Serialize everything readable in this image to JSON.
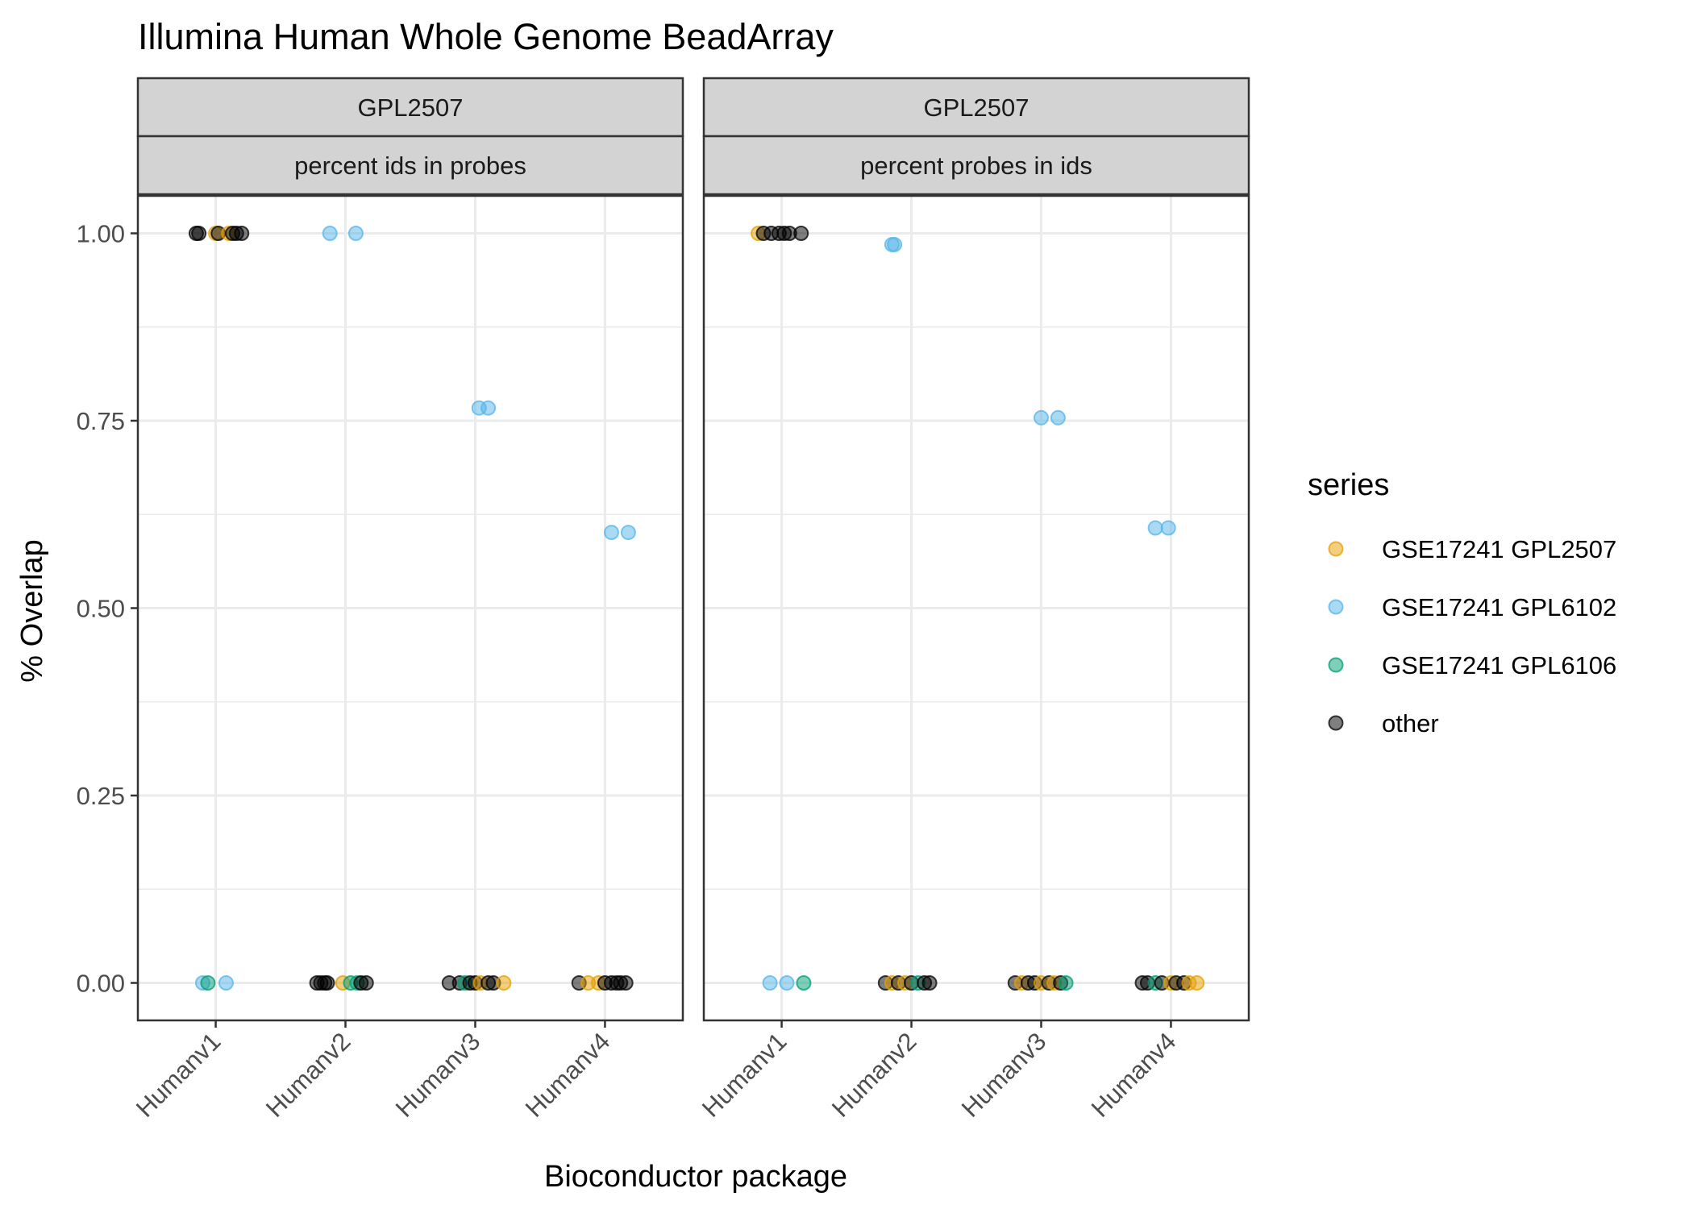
{
  "chart_data": {
    "type": "scatter",
    "title": "Illumina Human Whole Genome BeadArray",
    "xlabel": "Bioconductor package",
    "ylabel": "% Overlap",
    "ylim": [
      -0.05,
      1.05
    ],
    "yticks": [
      "0.00",
      "0.25",
      "0.50",
      "0.75",
      "1.00"
    ],
    "ytick_values": [
      0,
      0.25,
      0.5,
      0.75,
      1.0
    ],
    "categories": [
      "Humanv1",
      "Humanv2",
      "Humanv3",
      "Humanv4"
    ],
    "grid": true,
    "legend": {
      "title": "series",
      "placement": "right",
      "entries": [
        {
          "name": "GSE17241 GPL2507",
          "color": "#E69F00"
        },
        {
          "name": "GSE17241 GPL6102",
          "color": "#56B4E9"
        },
        {
          "name": "GSE17241 GPL6106",
          "color": "#009E73"
        },
        {
          "name": "other",
          "color": "#000000"
        }
      ]
    },
    "panels": [
      {
        "strip_top": "GPL2507",
        "strip_bottom": "percent ids in probes",
        "points": [
          {
            "x": "Humanv1",
            "jitter": -0.15,
            "y": 1.0,
            "series": "other"
          },
          {
            "x": "Humanv1",
            "jitter": -0.13,
            "y": 1.0,
            "series": "other"
          },
          {
            "x": "Humanv1",
            "jitter": 0.0,
            "y": 1.0,
            "series": "GSE17241 GPL2507"
          },
          {
            "x": "Humanv1",
            "jitter": 0.02,
            "y": 1.0,
            "series": "other"
          },
          {
            "x": "Humanv1",
            "jitter": 0.1,
            "y": 1.0,
            "series": "GSE17241 GPL2507"
          },
          {
            "x": "Humanv1",
            "jitter": 0.13,
            "y": 1.0,
            "series": "other"
          },
          {
            "x": "Humanv1",
            "jitter": 0.16,
            "y": 1.0,
            "series": "other"
          },
          {
            "x": "Humanv1",
            "jitter": 0.2,
            "y": 1.0,
            "series": "other"
          },
          {
            "x": "Humanv1",
            "jitter": -0.1,
            "y": 0.0,
            "series": "GSE17241 GPL6102"
          },
          {
            "x": "Humanv1",
            "jitter": -0.06,
            "y": 0.0,
            "series": "GSE17241 GPL6106"
          },
          {
            "x": "Humanv1",
            "jitter": 0.08,
            "y": 0.0,
            "series": "GSE17241 GPL6102"
          },
          {
            "x": "Humanv2",
            "jitter": -0.12,
            "y": 1.0,
            "series": "GSE17241 GPL6102"
          },
          {
            "x": "Humanv2",
            "jitter": 0.08,
            "y": 1.0,
            "series": "GSE17241 GPL6102"
          },
          {
            "x": "Humanv2",
            "jitter": -0.22,
            "y": 0.0,
            "series": "other"
          },
          {
            "x": "Humanv2",
            "jitter": -0.19,
            "y": 0.0,
            "series": "other"
          },
          {
            "x": "Humanv2",
            "jitter": -0.16,
            "y": 0.0,
            "series": "other"
          },
          {
            "x": "Humanv2",
            "jitter": -0.14,
            "y": 0.0,
            "series": "other"
          },
          {
            "x": "Humanv2",
            "jitter": -0.02,
            "y": 0.0,
            "series": "GSE17241 GPL2507"
          },
          {
            "x": "Humanv2",
            "jitter": 0.04,
            "y": 0.0,
            "series": "GSE17241 GPL6106"
          },
          {
            "x": "Humanv2",
            "jitter": 0.09,
            "y": 0.0,
            "series": "GSE17241 GPL6106"
          },
          {
            "x": "Humanv2",
            "jitter": 0.12,
            "y": 0.0,
            "series": "other"
          },
          {
            "x": "Humanv2",
            "jitter": 0.16,
            "y": 0.0,
            "series": "other"
          },
          {
            "x": "Humanv3",
            "jitter": 0.03,
            "y": 0.767,
            "series": "GSE17241 GPL6102"
          },
          {
            "x": "Humanv3",
            "jitter": 0.1,
            "y": 0.767,
            "series": "GSE17241 GPL6102"
          },
          {
            "x": "Humanv3",
            "jitter": -0.2,
            "y": 0.0,
            "series": "other"
          },
          {
            "x": "Humanv3",
            "jitter": -0.12,
            "y": 0.0,
            "series": "other"
          },
          {
            "x": "Humanv3",
            "jitter": -0.08,
            "y": 0.0,
            "series": "GSE17241 GPL6106"
          },
          {
            "x": "Humanv3",
            "jitter": -0.04,
            "y": 0.0,
            "series": "other"
          },
          {
            "x": "Humanv3",
            "jitter": 0.0,
            "y": 0.0,
            "series": "other"
          },
          {
            "x": "Humanv3",
            "jitter": 0.04,
            "y": 0.0,
            "series": "GSE17241 GPL2507"
          },
          {
            "x": "Humanv3",
            "jitter": 0.1,
            "y": 0.0,
            "series": "other"
          },
          {
            "x": "Humanv3",
            "jitter": 0.14,
            "y": 0.0,
            "series": "other"
          },
          {
            "x": "Humanv3",
            "jitter": 0.22,
            "y": 0.0,
            "series": "GSE17241 GPL2507"
          },
          {
            "x": "Humanv4",
            "jitter": 0.05,
            "y": 0.601,
            "series": "GSE17241 GPL6102"
          },
          {
            "x": "Humanv4",
            "jitter": 0.18,
            "y": 0.601,
            "series": "GSE17241 GPL6102"
          },
          {
            "x": "Humanv4",
            "jitter": -0.2,
            "y": 0.0,
            "series": "other"
          },
          {
            "x": "Humanv4",
            "jitter": -0.13,
            "y": 0.0,
            "series": "GSE17241 GPL2507"
          },
          {
            "x": "Humanv4",
            "jitter": -0.05,
            "y": 0.0,
            "series": "GSE17241 GPL2507"
          },
          {
            "x": "Humanv4",
            "jitter": 0.0,
            "y": 0.0,
            "series": "other"
          },
          {
            "x": "Humanv4",
            "jitter": 0.05,
            "y": 0.0,
            "series": "other"
          },
          {
            "x": "Humanv4",
            "jitter": 0.09,
            "y": 0.0,
            "series": "other"
          },
          {
            "x": "Humanv4",
            "jitter": 0.12,
            "y": 0.0,
            "series": "other"
          },
          {
            "x": "Humanv4",
            "jitter": 0.16,
            "y": 0.0,
            "series": "other"
          }
        ]
      },
      {
        "strip_top": "GPL2507",
        "strip_bottom": "percent probes in ids",
        "points": [
          {
            "x": "Humanv1",
            "jitter": -0.18,
            "y": 1.0,
            "series": "GSE17241 GPL2507"
          },
          {
            "x": "Humanv1",
            "jitter": -0.14,
            "y": 1.0,
            "series": "other"
          },
          {
            "x": "Humanv1",
            "jitter": -0.08,
            "y": 1.0,
            "series": "other"
          },
          {
            "x": "Humanv1",
            "jitter": -0.02,
            "y": 1.0,
            "series": "other"
          },
          {
            "x": "Humanv1",
            "jitter": 0.02,
            "y": 1.0,
            "series": "other"
          },
          {
            "x": "Humanv1",
            "jitter": 0.06,
            "y": 1.0,
            "series": "other"
          },
          {
            "x": "Humanv1",
            "jitter": 0.15,
            "y": 1.0,
            "series": "other"
          },
          {
            "x": "Humanv1",
            "jitter": -0.09,
            "y": 0.0,
            "series": "GSE17241 GPL6102"
          },
          {
            "x": "Humanv1",
            "jitter": 0.04,
            "y": 0.0,
            "series": "GSE17241 GPL6102"
          },
          {
            "x": "Humanv1",
            "jitter": 0.17,
            "y": 0.0,
            "series": "GSE17241 GPL6106"
          },
          {
            "x": "Humanv2",
            "jitter": -0.15,
            "y": 0.985,
            "series": "GSE17241 GPL6102"
          },
          {
            "x": "Humanv2",
            "jitter": -0.13,
            "y": 0.985,
            "series": "GSE17241 GPL6102"
          },
          {
            "x": "Humanv2",
            "jitter": -0.2,
            "y": 0.0,
            "series": "other"
          },
          {
            "x": "Humanv2",
            "jitter": -0.15,
            "y": 0.0,
            "series": "GSE17241 GPL2507"
          },
          {
            "x": "Humanv2",
            "jitter": -0.1,
            "y": 0.0,
            "series": "other"
          },
          {
            "x": "Humanv2",
            "jitter": -0.05,
            "y": 0.0,
            "series": "GSE17241 GPL2507"
          },
          {
            "x": "Humanv2",
            "jitter": 0.0,
            "y": 0.0,
            "series": "other"
          },
          {
            "x": "Humanv2",
            "jitter": 0.05,
            "y": 0.0,
            "series": "GSE17241 GPL6106"
          },
          {
            "x": "Humanv2",
            "jitter": 0.1,
            "y": 0.0,
            "series": "other"
          },
          {
            "x": "Humanv2",
            "jitter": 0.14,
            "y": 0.0,
            "series": "other"
          },
          {
            "x": "Humanv3",
            "jitter": 0.0,
            "y": 0.754,
            "series": "GSE17241 GPL6102"
          },
          {
            "x": "Humanv3",
            "jitter": 0.13,
            "y": 0.754,
            "series": "GSE17241 GPL6102"
          },
          {
            "x": "Humanv3",
            "jitter": -0.2,
            "y": 0.0,
            "series": "other"
          },
          {
            "x": "Humanv3",
            "jitter": -0.15,
            "y": 0.0,
            "series": "GSE17241 GPL2507"
          },
          {
            "x": "Humanv3",
            "jitter": -0.1,
            "y": 0.0,
            "series": "other"
          },
          {
            "x": "Humanv3",
            "jitter": -0.05,
            "y": 0.0,
            "series": "other"
          },
          {
            "x": "Humanv3",
            "jitter": 0.0,
            "y": 0.0,
            "series": "GSE17241 GPL2507"
          },
          {
            "x": "Humanv3",
            "jitter": 0.06,
            "y": 0.0,
            "series": "other"
          },
          {
            "x": "Humanv3",
            "jitter": 0.1,
            "y": 0.0,
            "series": "GSE17241 GPL2507"
          },
          {
            "x": "Humanv3",
            "jitter": 0.15,
            "y": 0.0,
            "series": "other"
          },
          {
            "x": "Humanv3",
            "jitter": 0.19,
            "y": 0.0,
            "series": "GSE17241 GPL6106"
          },
          {
            "x": "Humanv4",
            "jitter": -0.12,
            "y": 0.607,
            "series": "GSE17241 GPL6102"
          },
          {
            "x": "Humanv4",
            "jitter": -0.02,
            "y": 0.607,
            "series": "GSE17241 GPL6102"
          },
          {
            "x": "Humanv4",
            "jitter": -0.22,
            "y": 0.0,
            "series": "other"
          },
          {
            "x": "Humanv4",
            "jitter": -0.18,
            "y": 0.0,
            "series": "other"
          },
          {
            "x": "Humanv4",
            "jitter": -0.12,
            "y": 0.0,
            "series": "GSE17241 GPL6106"
          },
          {
            "x": "Humanv4",
            "jitter": -0.07,
            "y": 0.0,
            "series": "other"
          },
          {
            "x": "Humanv4",
            "jitter": 0.0,
            "y": 0.0,
            "series": "GSE17241 GPL2507"
          },
          {
            "x": "Humanv4",
            "jitter": 0.04,
            "y": 0.0,
            "series": "other"
          },
          {
            "x": "Humanv4",
            "jitter": 0.1,
            "y": 0.0,
            "series": "other"
          },
          {
            "x": "Humanv4",
            "jitter": 0.14,
            "y": 0.0,
            "series": "GSE17241 GPL2507"
          },
          {
            "x": "Humanv4",
            "jitter": 0.2,
            "y": 0.0,
            "series": "GSE17241 GPL2507"
          }
        ]
      }
    ]
  }
}
